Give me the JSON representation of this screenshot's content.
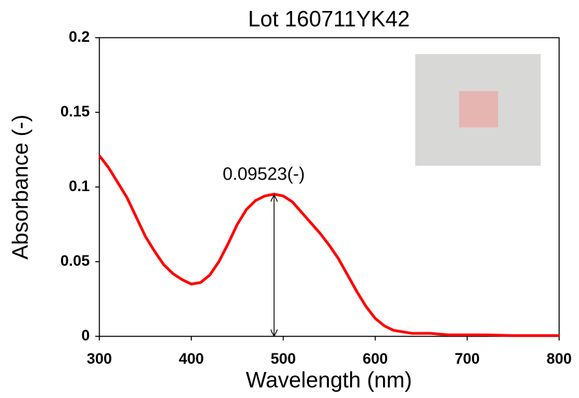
{
  "chart_data": {
    "type": "line",
    "title": "Lot 160711YK42",
    "x_label": "Wavelength (nm)",
    "y_label": "Absorbance (-)",
    "x": [
      300,
      310,
      320,
      330,
      340,
      350,
      360,
      370,
      380,
      390,
      400,
      410,
      420,
      430,
      440,
      450,
      460,
      470,
      480,
      490,
      500,
      510,
      520,
      530,
      540,
      550,
      560,
      570,
      580,
      590,
      600,
      610,
      620,
      630,
      640,
      660,
      680,
      700,
      720,
      750,
      800
    ],
    "series": [
      {
        "name": "Lot 160711YK42",
        "color": "#ff0000",
        "values": [
          0.121,
          0.113,
          0.103,
          0.093,
          0.08,
          0.067,
          0.057,
          0.048,
          0.042,
          0.038,
          0.035,
          0.036,
          0.041,
          0.05,
          0.062,
          0.075,
          0.085,
          0.091,
          0.094,
          0.0952,
          0.094,
          0.09,
          0.083,
          0.076,
          0.069,
          0.061,
          0.052,
          0.041,
          0.03,
          0.02,
          0.012,
          0.007,
          0.004,
          0.003,
          0.002,
          0.002,
          0.001,
          0.001,
          0.001,
          0.0005,
          0.0005
        ]
      }
    ],
    "annotation": {
      "text": "0.09523(-)",
      "x": 490,
      "y": 0.09523
    },
    "xlim": [
      300,
      800
    ],
    "xticks": [
      300,
      400,
      500,
      600,
      700,
      800
    ],
    "ylim": [
      0,
      0.2
    ],
    "yticks": [
      0,
      0.05,
      0.1,
      0.15,
      0.2
    ]
  }
}
